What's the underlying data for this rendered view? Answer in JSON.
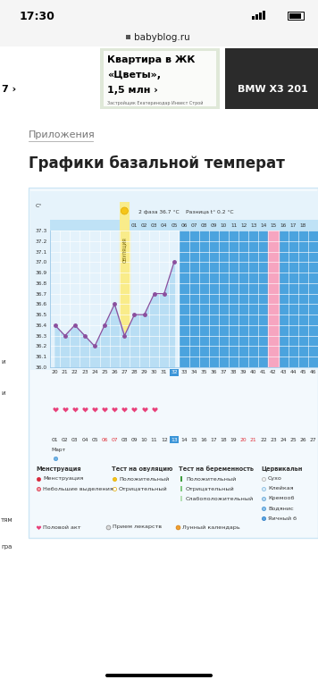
{
  "status_bar": {
    "time": "17:30",
    "url": "babyblog.ru"
  },
  "ads": {
    "left": "7 ›",
    "middle": [
      "Квартира в ЖК",
      "«Цветы»,",
      "1,5 млн ›"
    ],
    "middle_note": "Застройщик Екатеринодар Инвест Строй",
    "right": "BMW X3 201"
  },
  "page": {
    "section": "Приложения",
    "title": "Графики базальной температ",
    "sidebar": [
      "и",
      "и",
      "тям",
      "гра"
    ]
  },
  "chart_data": {
    "type": "line",
    "y_label": "С°",
    "phase_info": "2 фаза 36.7 °C",
    "difference": "Разница t° 0.2 °C",
    "categories": [
      "20",
      "21",
      "22",
      "23",
      "24",
      "25",
      "26",
      "27",
      "28",
      "29",
      "30",
      "31",
      "32",
      "33",
      "34",
      "35",
      "36",
      "37",
      "38",
      "39",
      "40",
      "41",
      "42",
      "43",
      "44",
      "45",
      "46"
    ],
    "post_ovulation_days": [
      null,
      null,
      null,
      null,
      null,
      null,
      null,
      null,
      "01",
      "02",
      "03",
      "04",
      "05",
      "06",
      "07",
      "08",
      "09",
      "10",
      "11",
      "12",
      "13",
      "14",
      "15",
      "16",
      "17",
      "18",
      null
    ],
    "dates": [
      "01",
      "02",
      "03",
      "04",
      "05",
      "06",
      "07",
      "08",
      "09",
      "10",
      "11",
      "12",
      "13",
      "14",
      "15",
      "16",
      "17",
      "18",
      "19",
      "20",
      "21",
      "22",
      "23",
      "24",
      "25",
      "26",
      "27"
    ],
    "month": "Март",
    "weekend_dates": [
      "06",
      "07",
      "20",
      "21"
    ],
    "highlight_category": "32",
    "ovulation_category": "27",
    "ovulation_label": "ОВУЛЯЦИЯ",
    "pink_category": "42",
    "intercourse": [
      "20",
      "21",
      "22",
      "23",
      "24",
      "25",
      "26",
      "27",
      "28",
      "29",
      "30"
    ],
    "cervical_mucus": [
      "20"
    ],
    "values": [
      36.4,
      36.3,
      36.4,
      36.3,
      36.2,
      36.4,
      36.6,
      36.3,
      36.5,
      36.5,
      36.7,
      36.7,
      37.0,
      null,
      null,
      null,
      null,
      null,
      null,
      null,
      null,
      null,
      null,
      null,
      null,
      null,
      null
    ],
    "ylim": [
      36.0,
      37.3
    ],
    "yticks": [
      36.0,
      36.1,
      36.2,
      36.3,
      36.4,
      36.5,
      36.6,
      36.7,
      36.8,
      36.9,
      37.0,
      37.1,
      37.2,
      37.3
    ],
    "grid": true,
    "color": "#8b4f9e",
    "marker": "o"
  },
  "legend_panel": {
    "groups": [
      {
        "title": "Менструация",
        "items": [
          "Менструация",
          "Небольшие выделения"
        ]
      },
      {
        "title": "Тест на овуляцию",
        "items": [
          "Положительный",
          "Отрицательный"
        ]
      },
      {
        "title": "Тест на беременность",
        "items": [
          "Положительный",
          "Отрицательный",
          "Слабоположительный"
        ]
      },
      {
        "title": "Цервикальн",
        "items": [
          "Сухо",
          "Клейкая",
          "Кремооб",
          "Водянис",
          "Яичный б"
        ]
      }
    ],
    "extras": [
      "Половой акт",
      "Прием лекарств",
      "Лунный календарь"
    ]
  }
}
